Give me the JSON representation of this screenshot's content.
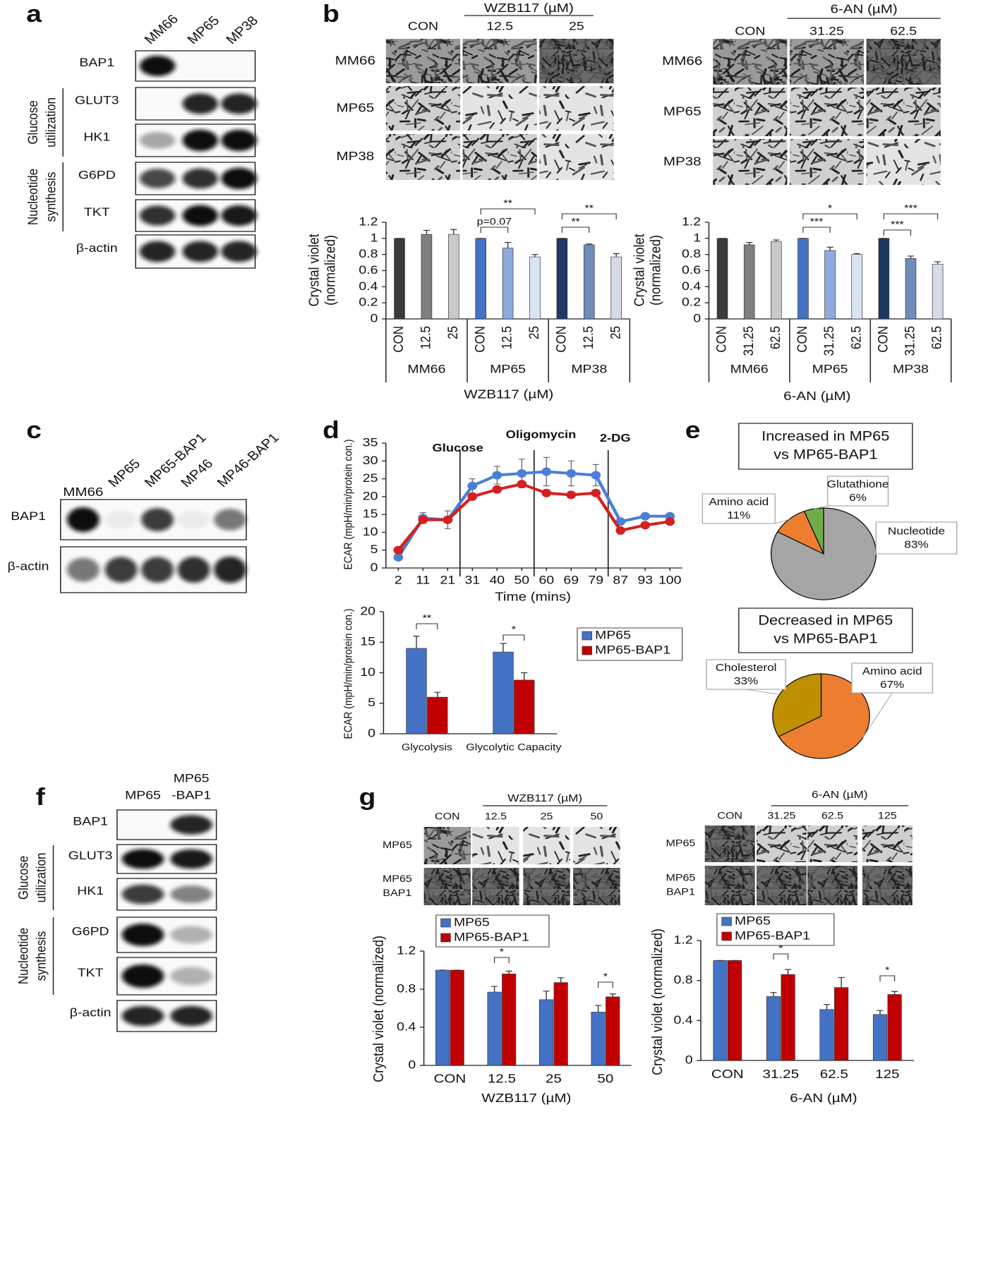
{
  "panel_labels": [
    "a",
    "b",
    "c",
    "d",
    "e",
    "f",
    "g"
  ],
  "blot_a": {
    "lanes": [
      "MM66",
      "MP65",
      "MP38"
    ],
    "rows": [
      "BAP1",
      "GLUT3",
      "HK1",
      "G6PD",
      "TKT",
      "β-actin"
    ],
    "groups": [
      [
        "Glucose",
        "utilization"
      ],
      [
        "Nucleotide",
        "synthesis"
      ]
    ]
  },
  "images_b": [
    {
      "treatment": "WZB117 (µM)",
      "columns": [
        "CON",
        "12.5",
        "25"
      ],
      "rows": [
        "MM66",
        "MP65",
        "MP38"
      ]
    },
    {
      "treatment": "6-AN (µM)",
      "columns": [
        "CON",
        "31.25",
        "62.5"
      ],
      "rows": [
        "MM66",
        "MP65",
        "MP38"
      ]
    }
  ],
  "blot_c": {
    "lanes": [
      "MM66",
      "MP65",
      "MP65-BAP1",
      "MP46",
      "MP46-BAP1"
    ],
    "rows": [
      "BAP1",
      "β-actin"
    ]
  },
  "blot_f": {
    "lanes": [
      [
        "MP65"
      ],
      [
        "MP65",
        "-BAP1"
      ]
    ],
    "rows": [
      "BAP1",
      "GLUT3",
      "HK1",
      "G6PD",
      "TKT",
      "β-actin"
    ],
    "groups": [
      [
        "Glucose",
        "utilization"
      ],
      [
        "Nucleotide",
        "synthesis"
      ]
    ]
  },
  "images_g": [
    {
      "treatment": "WZB117 (µM)",
      "columns": [
        "CON",
        "12.5",
        "25",
        "50"
      ],
      "rows": [
        [
          "MP65"
        ],
        [
          "MP65",
          "BAP1"
        ]
      ]
    },
    {
      "treatment": "6-AN (µM)",
      "columns": [
        "CON",
        "31.25",
        "62.5",
        "125"
      ],
      "rows": [
        [
          "MP65"
        ],
        [
          "MP65",
          "BAP1"
        ]
      ]
    }
  ],
  "chart_data": [
    {
      "type": "bar",
      "categories": [
        "CON",
        "12.5",
        "25",
        "CON",
        "12.5",
        "25",
        "CON",
        "12.5",
        "25"
      ],
      "groups": [
        "MM66",
        "MP65",
        "MP38"
      ],
      "values": [
        1,
        1.05,
        1.05,
        1,
        0.88,
        0.77,
        1,
        0.92,
        0.77
      ],
      "errors": [
        0,
        0.05,
        0.06,
        0,
        0.07,
        0.03,
        0,
        0.01,
        0.04
      ],
      "colors": [
        "#3a3a3a",
        "#7f7f7f",
        "#c9c9c9",
        "#4472c4",
        "#8faadc",
        "#dae3f3",
        "#1f3864",
        "#6f8db9",
        "#d6dce5"
      ],
      "ylim": [
        0,
        1.2
      ],
      "yticks": [
        0,
        0.2,
        0.4,
        0.6,
        0.8,
        1,
        1.2
      ],
      "ylabel": [
        "Crystal violet",
        "(normalized)"
      ],
      "xlabel": "WZB117 (µM)",
      "annotations": [
        "**",
        "p=0.07",
        "**",
        "**"
      ]
    },
    {
      "type": "bar",
      "categories": [
        "CON",
        "31.25",
        "62.5",
        "CON",
        "31.25",
        "62.5",
        "CON",
        "31.25",
        "62.5"
      ],
      "groups": [
        "MM66",
        "MP65",
        "MP38"
      ],
      "values": [
        1,
        0.92,
        0.96,
        1,
        0.85,
        0.8,
        1,
        0.75,
        0.68
      ],
      "errors": [
        0,
        0.03,
        0.02,
        0,
        0.04,
        0.01,
        0,
        0.03,
        0.03
      ],
      "colors": [
        "#3a3a3a",
        "#7f7f7f",
        "#c9c9c9",
        "#4472c4",
        "#8faadc",
        "#dae3f3",
        "#1f3864",
        "#6f8db9",
        "#d6dce5"
      ],
      "ylim": [
        0,
        1.2
      ],
      "yticks": [
        0,
        0.2,
        0.4,
        0.6,
        0.8,
        1,
        1.2
      ],
      "ylabel": [
        "Crystal violet",
        "(normalized)"
      ],
      "xlabel": "6-AN (µM)",
      "annotations": [
        "*",
        "***",
        "***",
        "***"
      ]
    },
    {
      "type": "line",
      "categories": [
        2,
        11,
        21,
        31,
        40,
        50,
        60,
        69,
        79,
        87,
        93,
        100
      ],
      "series": [
        {
          "color": "#4a7fd4",
          "values": [
            3,
            14,
            13.5,
            23,
            26,
            26.5,
            27,
            26.5,
            26,
            13,
            14.5,
            14.5
          ],
          "errors": [
            0.5,
            1.5,
            2.5,
            2,
            2.5,
            4,
            4,
            3.5,
            3,
            0.5,
            0.5,
            0.5
          ]
        },
        {
          "color": "#d42020",
          "values": [
            5,
            13.5,
            13.5,
            20,
            22,
            23.5,
            21,
            20.5,
            21,
            10.5,
            12,
            13
          ]
        }
      ],
      "ylim": [
        0,
        35
      ],
      "yticks": [
        0,
        5,
        10,
        15,
        20,
        25,
        30,
        35
      ],
      "ylabel": "ECAR (mpH/min/protein con.)",
      "xlabel": "Time (mins)",
      "annotations": [
        "Glucose",
        "Oligomycin",
        "2-DG"
      ]
    },
    {
      "type": "bar",
      "categories": [
        "Glycolysis",
        "Glycolytic Capacity"
      ],
      "series": [
        {
          "name": "MP65",
          "color": "#4472c4",
          "values": [
            14,
            13.4
          ],
          "errors": [
            2,
            1.4
          ]
        },
        {
          "name": "MP65-BAP1",
          "color": "#c00000",
          "values": [
            6,
            8.8
          ],
          "errors": [
            0.8,
            1.2
          ]
        }
      ],
      "ylim": [
        0,
        20
      ],
      "yticks": [
        0,
        5,
        10,
        15,
        20
      ],
      "ylabel": "ECAR (mpH/min/protein con.)",
      "annotations": [
        "**",
        "*"
      ]
    },
    {
      "type": "pie",
      "title": [
        "Increased in MP65",
        "vs MP65-BAP1"
      ],
      "categories": [
        "Nucleotide",
        "Amino acid",
        "Glutathione"
      ],
      "values": [
        83,
        11,
        6
      ],
      "value_labels": [
        "83%",
        "11%",
        "6%"
      ],
      "colors": [
        "#a5a5a5",
        "#ed7d31",
        "#70ad47"
      ]
    },
    {
      "type": "pie",
      "title": [
        "Decreased in MP65",
        "vs MP65-BAP1"
      ],
      "categories": [
        "Amino acid",
        "Cholesterol"
      ],
      "values": [
        67,
        33
      ],
      "value_labels": [
        "67%",
        "33%"
      ],
      "colors": [
        "#ed7d31",
        "#bf9000"
      ]
    },
    {
      "type": "bar",
      "categories": [
        "CON",
        "12.5",
        "25",
        "50"
      ],
      "series": [
        {
          "name": "MP65",
          "color": "#4472c4",
          "values": [
            1,
            0.77,
            0.69,
            0.56
          ],
          "errors": [
            0,
            0.06,
            0.09,
            0.07
          ]
        },
        {
          "name": "MP65-BAP1",
          "color": "#c00000",
          "values": [
            1,
            0.96,
            0.87,
            0.72
          ],
          "errors": [
            0,
            0.03,
            0.05,
            0.03
          ]
        }
      ],
      "ylim": [
        0,
        1.2
      ],
      "yticks": [
        0,
        0.4,
        0.8,
        1.2
      ],
      "ylabel": "Crystal violet (normalized)",
      "xlabel": "WZB117 (µM)",
      "annotations": [
        "*",
        "*"
      ]
    },
    {
      "type": "bar",
      "categories": [
        "CON",
        "31.25",
        "62.5",
        "125"
      ],
      "series": [
        {
          "name": "MP65",
          "color": "#4472c4",
          "values": [
            1,
            0.64,
            0.51,
            0.46
          ],
          "errors": [
            0,
            0.04,
            0.05,
            0.04
          ]
        },
        {
          "name": "MP65-BAP1",
          "color": "#c00000",
          "values": [
            1,
            0.86,
            0.73,
            0.66
          ],
          "errors": [
            0,
            0.05,
            0.1,
            0.03
          ]
        }
      ],
      "ylim": [
        0,
        1.2
      ],
      "yticks": [
        0,
        0.4,
        0.8,
        1.2
      ],
      "ylabel": "Crystal violet (normalized)",
      "xlabel": "6-AN (µM)",
      "annotations": [
        "*",
        "*"
      ]
    }
  ]
}
